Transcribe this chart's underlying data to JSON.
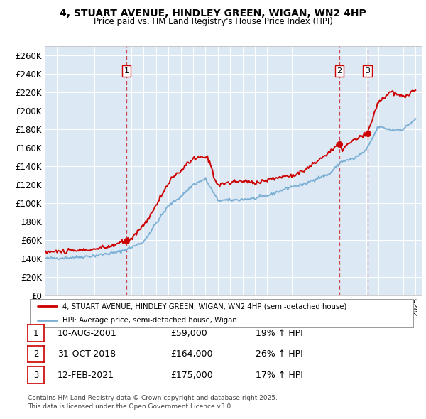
{
  "title": "4, STUART AVENUE, HINDLEY GREEN, WIGAN, WN2 4HP",
  "subtitle": "Price paid vs. HM Land Registry's House Price Index (HPI)",
  "ylim": [
    0,
    270000
  ],
  "yticks": [
    0,
    20000,
    40000,
    60000,
    80000,
    100000,
    120000,
    140000,
    160000,
    180000,
    200000,
    220000,
    240000,
    260000
  ],
  "plot_bg": "#dce9f5",
  "fig_bg": "#ffffff",
  "red_color": "#cc0000",
  "blue_color": "#7bafd4",
  "sale_dates": [
    2001.608,
    2018.833,
    2021.12
  ],
  "sale_prices": [
    59000,
    164000,
    175000
  ],
  "sale_labels": [
    "1",
    "2",
    "3"
  ],
  "legend_entries": [
    "4, STUART AVENUE, HINDLEY GREEN, WIGAN, WN2 4HP (semi-detached house)",
    "HPI: Average price, semi-detached house, Wigan"
  ],
  "table_rows": [
    [
      "1",
      "10-AUG-2001",
      "£59,000",
      "19% ↑ HPI"
    ],
    [
      "2",
      "31-OCT-2018",
      "£164,000",
      "26% ↑ HPI"
    ],
    [
      "3",
      "12-FEB-2021",
      "£175,000",
      "17% ↑ HPI"
    ]
  ],
  "footnote": "Contains HM Land Registry data © Crown copyright and database right 2025.\nThis data is licensed under the Open Government Licence v3.0.",
  "xmin": 1995,
  "xmax": 2025.5
}
